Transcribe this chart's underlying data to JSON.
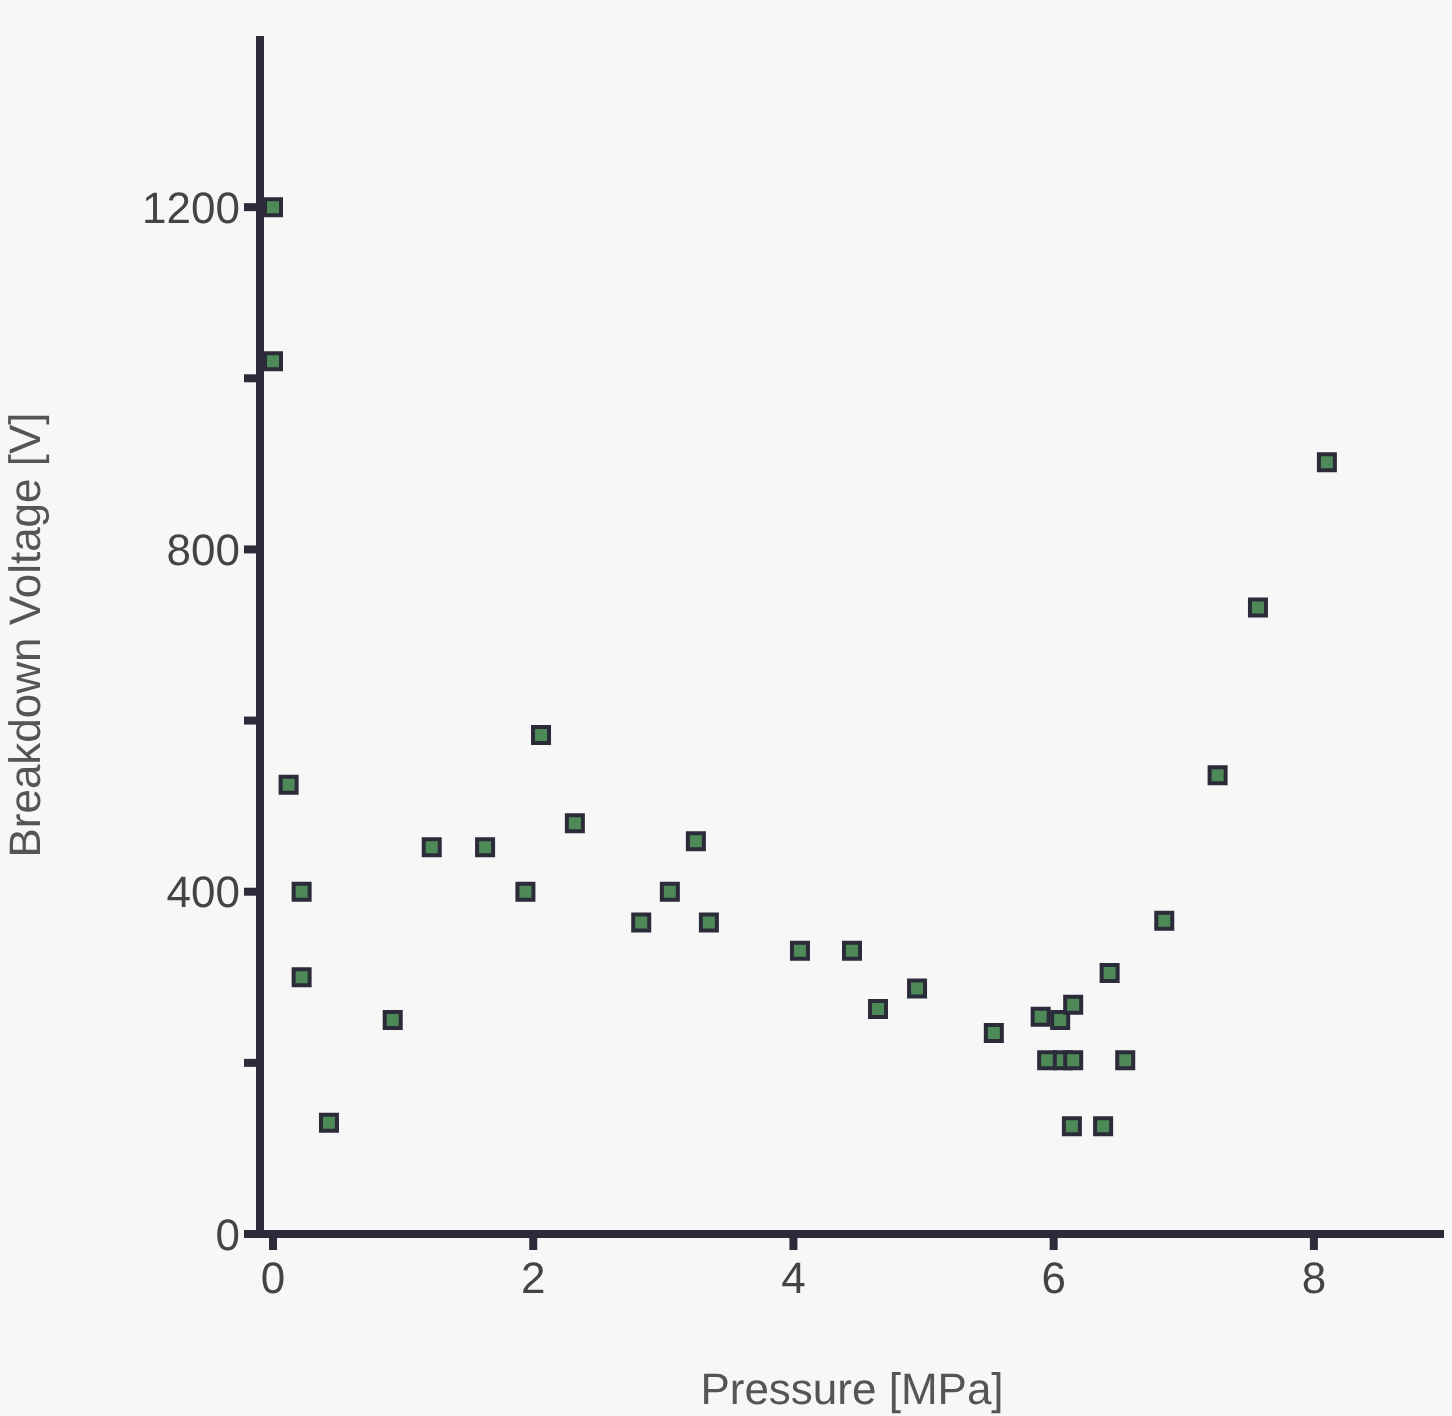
{
  "chart_data": {
    "type": "scatter",
    "xlabel": "Pressure [MPa]",
    "ylabel": "Breakdown Voltage [V]",
    "marker": "square",
    "xlim": [
      -0.1,
      9
    ],
    "xticks": [
      0,
      2,
      4,
      6,
      8
    ],
    "ylim": [
      0,
      1400
    ],
    "yticks": [
      0,
      {
        "value": 200,
        "label": null
      },
      400,
      {
        "value": 600,
        "label": null
      },
      800,
      {
        "value": 1000,
        "label": null
      },
      1200
    ],
    "grid": false,
    "legend": false,
    "series": [
      {
        "color": "#4e8a58",
        "x": [
          0,
          0,
          0.12,
          0.22,
          0.22,
          0.43,
          0.92,
          1.22,
          1.63,
          1.94,
          2.06,
          2.32,
          2.83,
          3.05,
          3.25,
          3.35,
          4.05,
          4.45,
          4.65,
          4.95,
          5.54,
          5.9,
          6.05,
          6.15,
          5.95,
          6.07,
          6.15,
          6.43,
          6.55,
          6.14,
          6.38,
          6.85,
          7.26,
          7.57,
          8.1
        ],
        "values": [
          1200,
          1020,
          525,
          400,
          300,
          130,
          250,
          452,
          452,
          400,
          583,
          480,
          364,
          400,
          459,
          364,
          331,
          331,
          263,
          287,
          235,
          254,
          250,
          268,
          203,
          203,
          203,
          305,
          203,
          126,
          126,
          366,
          536,
          732,
          902
        ]
      }
    ]
  }
}
